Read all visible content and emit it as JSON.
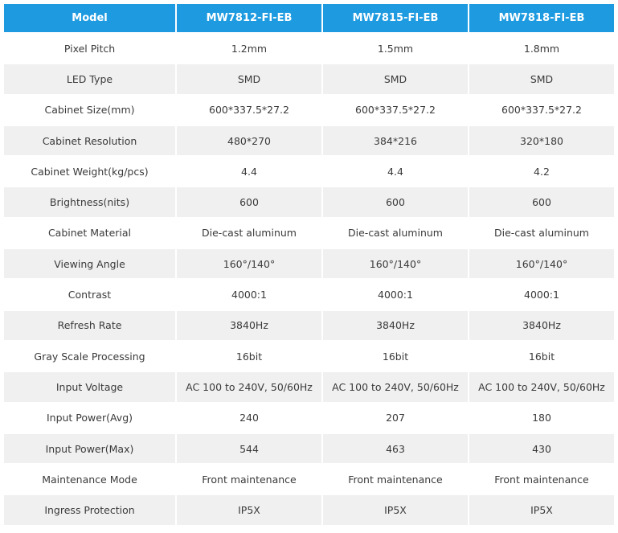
{
  "table": {
    "header": [
      "Model",
      "MW7812-FI-EB",
      "MW7815-FI-EB",
      "MW7818-FI-EB"
    ],
    "rows": [
      [
        "Pixel Pitch",
        "1.2mm",
        "1.5mm",
        "1.8mm"
      ],
      [
        "LED Type",
        "SMD",
        "SMD",
        "SMD"
      ],
      [
        "Cabinet Size(mm)",
        "600*337.5*27.2",
        "600*337.5*27.2",
        "600*337.5*27.2"
      ],
      [
        "Cabinet Resolution",
        "480*270",
        "384*216",
        "320*180"
      ],
      [
        "Cabinet Weight(kg/pcs)",
        "4.4",
        "4.4",
        "4.2"
      ],
      [
        "Brightness(nits)",
        "600",
        "600",
        "600"
      ],
      [
        "Cabinet Material",
        "Die-cast aluminum",
        "Die-cast aluminum",
        "Die-cast aluminum"
      ],
      [
        "Viewing Angle",
        "160°/140°",
        "160°/140°",
        "160°/140°"
      ],
      [
        "Contrast",
        "4000:1",
        "4000:1",
        "4000:1"
      ],
      [
        "Refresh Rate",
        "3840Hz",
        "3840Hz",
        "3840Hz"
      ],
      [
        "Gray Scale Processing",
        "16bit",
        "16bit",
        "16bit"
      ],
      [
        "Input Voltage",
        "AC 100 to 240V, 50/60Hz",
        "AC 100 to 240V, 50/60Hz",
        "AC 100 to 240V, 50/60Hz"
      ],
      [
        "Input Power(Avg)",
        "240",
        "207",
        "180"
      ],
      [
        "Input Power(Max)",
        "544",
        "463",
        "430"
      ],
      [
        "Maintenance Mode",
        "Front maintenance",
        "Front maintenance",
        "Front maintenance"
      ],
      [
        "Ingress Protection",
        "IP5X",
        "IP5X",
        "IP5X"
      ]
    ]
  }
}
